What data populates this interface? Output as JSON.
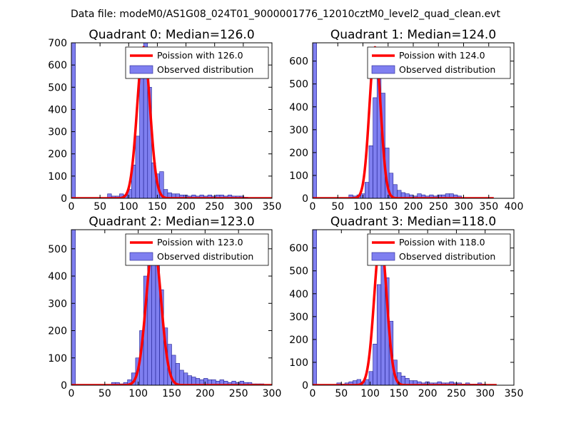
{
  "suptitle": "Data file: modeM0/AS1G08_024T01_9000001776_12010cztM0_level2_quad_clean.evt",
  "colors": {
    "bar_fill": "#7f7ff0",
    "bar_edge": "#1f1f8f",
    "poisson_line": "#ff0000"
  },
  "chart_data": [
    {
      "type": "bar",
      "title": "Quadrant 0: Median=126.0",
      "xlim": [
        0,
        350
      ],
      "ylim": [
        0,
        700
      ],
      "xticks": [
        0,
        50,
        100,
        150,
        200,
        250,
        300,
        350
      ],
      "yticks": [
        0,
        100,
        200,
        300,
        400,
        500,
        600,
        700
      ],
      "legend": {
        "position": "top-right",
        "line_label": "Poission with 126.0",
        "bar_label": "Observed distribution"
      },
      "bar_width": 7,
      "bars": [
        [
          0,
          700
        ],
        [
          63,
          20
        ],
        [
          70,
          10
        ],
        [
          77,
          10
        ],
        [
          84,
          20
        ],
        [
          91,
          15
        ],
        [
          98,
          40
        ],
        [
          105,
          150
        ],
        [
          112,
          280
        ],
        [
          119,
          620
        ],
        [
          126,
          700
        ],
        [
          133,
          500
        ],
        [
          140,
          160
        ],
        [
          147,
          110
        ],
        [
          154,
          120
        ],
        [
          161,
          40
        ],
        [
          168,
          25
        ],
        [
          175,
          20
        ],
        [
          182,
          20
        ],
        [
          189,
          15
        ],
        [
          196,
          15
        ],
        [
          203,
          10
        ],
        [
          210,
          15
        ],
        [
          217,
          10
        ],
        [
          224,
          15
        ],
        [
          231,
          10
        ],
        [
          238,
          15
        ],
        [
          245,
          10
        ],
        [
          252,
          15
        ],
        [
          259,
          15
        ],
        [
          266,
          10
        ],
        [
          273,
          15
        ],
        [
          280,
          10
        ],
        [
          287,
          10
        ],
        [
          294,
          10
        ],
        [
          301,
          5
        ]
      ],
      "poisson": {
        "mean": 126,
        "peak": 680,
        "x_range": [
          0,
          350
        ]
      }
    },
    {
      "type": "bar",
      "title": "Quadrant 1: Median=124.0",
      "xlim": [
        0,
        400
      ],
      "ylim": [
        0,
        680
      ],
      "xticks": [
        0,
        50,
        100,
        150,
        200,
        250,
        300,
        350,
        400
      ],
      "yticks": [
        0,
        100,
        200,
        300,
        400,
        500,
        600
      ],
      "legend": {
        "position": "top-right",
        "line_label": "Poission with 124.0",
        "bar_label": "Observed distribution"
      },
      "bar_width": 8,
      "bars": [
        [
          0,
          680
        ],
        [
          72,
          15
        ],
        [
          80,
          10
        ],
        [
          88,
          15
        ],
        [
          96,
          20
        ],
        [
          104,
          70
        ],
        [
          112,
          230
        ],
        [
          120,
          440
        ],
        [
          128,
          620
        ],
        [
          136,
          460
        ],
        [
          144,
          220
        ],
        [
          152,
          110
        ],
        [
          160,
          60
        ],
        [
          168,
          35
        ],
        [
          176,
          25
        ],
        [
          184,
          20
        ],
        [
          192,
          15
        ],
        [
          200,
          10
        ],
        [
          208,
          20
        ],
        [
          216,
          15
        ],
        [
          224,
          10
        ],
        [
          232,
          15
        ],
        [
          240,
          10
        ],
        [
          248,
          15
        ],
        [
          256,
          15
        ],
        [
          264,
          20
        ],
        [
          272,
          20
        ],
        [
          280,
          15
        ],
        [
          288,
          10
        ]
      ],
      "poisson": {
        "mean": 124,
        "peak": 660,
        "x_range": [
          0,
          360
        ]
      }
    },
    {
      "type": "bar",
      "title": "Quadrant 2: Median=123.0",
      "xlim": [
        0,
        300
      ],
      "ylim": [
        0,
        570
      ],
      "xticks": [
        0,
        50,
        100,
        150,
        200,
        250,
        300
      ],
      "yticks": [
        0,
        100,
        200,
        300,
        400,
        500
      ],
      "legend": {
        "position": "top-right",
        "line_label": "Poission with 123.0",
        "bar_label": "Observed distribution"
      },
      "bar_width": 6,
      "bars": [
        [
          0,
          570
        ],
        [
          60,
          10
        ],
        [
          66,
          10
        ],
        [
          72,
          5
        ],
        [
          78,
          10
        ],
        [
          84,
          20
        ],
        [
          90,
          45
        ],
        [
          96,
          100
        ],
        [
          102,
          200
        ],
        [
          108,
          400
        ],
        [
          114,
          520
        ],
        [
          120,
          540
        ],
        [
          126,
          480
        ],
        [
          132,
          350
        ],
        [
          138,
          210
        ],
        [
          144,
          150
        ],
        [
          150,
          110
        ],
        [
          156,
          80
        ],
        [
          162,
          55
        ],
        [
          168,
          45
        ],
        [
          174,
          35
        ],
        [
          180,
          30
        ],
        [
          186,
          25
        ],
        [
          192,
          20
        ],
        [
          198,
          25
        ],
        [
          204,
          20
        ],
        [
          210,
          20
        ],
        [
          216,
          15
        ],
        [
          222,
          20
        ],
        [
          228,
          15
        ],
        [
          234,
          10
        ],
        [
          240,
          15
        ],
        [
          246,
          10
        ],
        [
          252,
          15
        ],
        [
          258,
          10
        ],
        [
          264,
          10
        ],
        [
          270,
          5
        ],
        [
          276,
          5
        ],
        [
          282,
          5
        ]
      ],
      "poisson": {
        "mean": 123,
        "peak": 520,
        "x_range": [
          0,
          300
        ]
      }
    },
    {
      "type": "bar",
      "title": "Quadrant 3: Median=118.0",
      "xlim": [
        0,
        350
      ],
      "ylim": [
        0,
        680
      ],
      "xticks": [
        0,
        50,
        100,
        150,
        200,
        250,
        300,
        350
      ],
      "yticks": [
        0,
        100,
        200,
        300,
        400,
        500,
        600
      ],
      "legend": {
        "position": "top-right",
        "line_label": "Poission with 118.0",
        "bar_label": "Observed distribution"
      },
      "bar_width": 7,
      "bars": [
        [
          0,
          680
        ],
        [
          42,
          10
        ],
        [
          49,
          5
        ],
        [
          56,
          10
        ],
        [
          63,
          15
        ],
        [
          70,
          20
        ],
        [
          77,
          25
        ],
        [
          84,
          15
        ],
        [
          91,
          25
        ],
        [
          98,
          60
        ],
        [
          105,
          180
        ],
        [
          112,
          440
        ],
        [
          119,
          540
        ],
        [
          126,
          470
        ],
        [
          133,
          280
        ],
        [
          140,
          110
        ],
        [
          147,
          55
        ],
        [
          154,
          40
        ],
        [
          161,
          30
        ],
        [
          168,
          20
        ],
        [
          175,
          20
        ],
        [
          182,
          15
        ],
        [
          189,
          10
        ],
        [
          196,
          15
        ],
        [
          203,
          10
        ],
        [
          210,
          10
        ],
        [
          217,
          15
        ],
        [
          224,
          10
        ],
        [
          231,
          10
        ],
        [
          238,
          15
        ],
        [
          245,
          10
        ],
        [
          252,
          10
        ],
        [
          259,
          5
        ],
        [
          266,
          10
        ],
        [
          273,
          5
        ],
        [
          280,
          5
        ],
        [
          287,
          10
        ],
        [
          294,
          5
        ]
      ],
      "poisson": {
        "mean": 118,
        "peak": 640,
        "x_range": [
          0,
          320
        ]
      }
    }
  ]
}
